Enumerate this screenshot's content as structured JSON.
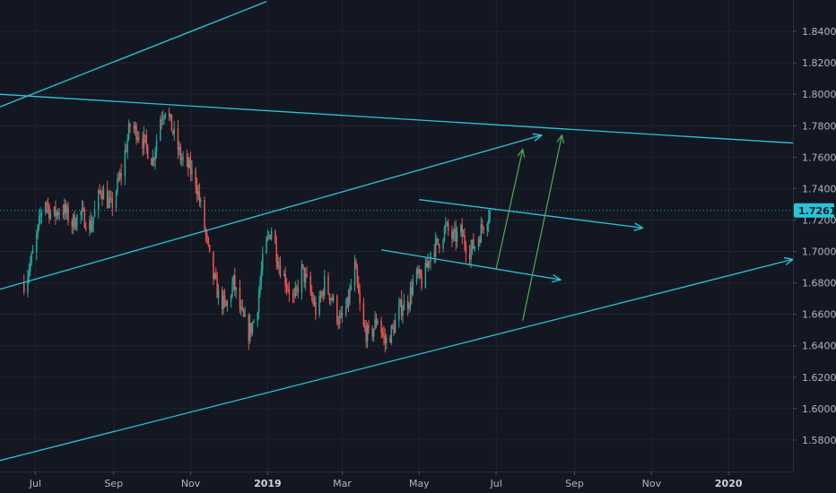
{
  "chart_data": {
    "type": "candlestick",
    "title": "",
    "xlabel": "",
    "ylabel": "",
    "x_ticks": [
      {
        "label": "Jul",
        "date": "2018-07-01"
      },
      {
        "label": "Sep",
        "date": "2018-09-01"
      },
      {
        "label": "Nov",
        "date": "2018-11-01"
      },
      {
        "label": "2019",
        "date": "2019-01-01",
        "bold": true
      },
      {
        "label": "Mar",
        "date": "2019-03-01"
      },
      {
        "label": "May",
        "date": "2019-05-01"
      },
      {
        "label": "Jul",
        "date": "2019-07-01"
      },
      {
        "label": "Sep",
        "date": "2019-09-01"
      },
      {
        "label": "Nov",
        "date": "2019-11-01"
      },
      {
        "label": "2020",
        "date": "2020-01-01",
        "bold": true
      }
    ],
    "y_ticks": [
      "1.84000",
      "1.82000",
      "1.80000",
      "1.78000",
      "1.76000",
      "1.74000",
      "1.72000",
      "1.70000",
      "1.68000",
      "1.66000",
      "1.64000",
      "1.62000",
      "1.60000",
      "1.58000"
    ],
    "ylim": [
      1.56,
      1.86
    ],
    "xlim": [
      "2018-06-03",
      "2020-02-21"
    ],
    "last_price": {
      "value": 1.7261,
      "label": "1.72610",
      "color": "#26c6da"
    },
    "grid": true,
    "colors": {
      "up": "#26a69a",
      "down": "#ef5350",
      "trendline": "#26c6da",
      "projection": "#4caf50"
    },
    "price_path": [
      [
        "2018-06-22",
        1.68
      ],
      [
        "2018-06-30",
        1.7
      ],
      [
        "2018-07-08",
        1.735
      ],
      [
        "2018-07-14",
        1.722
      ],
      [
        "2018-07-22",
        1.728
      ],
      [
        "2018-07-30",
        1.718
      ],
      [
        "2018-08-06",
        1.724
      ],
      [
        "2018-08-14",
        1.716
      ],
      [
        "2018-08-22",
        1.74
      ],
      [
        "2018-08-30",
        1.728
      ],
      [
        "2018-09-07",
        1.75
      ],
      [
        "2018-09-14",
        1.78
      ],
      [
        "2018-09-20",
        1.776
      ],
      [
        "2018-09-26",
        1.768
      ],
      [
        "2018-10-02",
        1.758
      ],
      [
        "2018-10-08",
        1.785
      ],
      [
        "2018-10-12",
        1.792
      ],
      [
        "2018-10-18",
        1.776
      ],
      [
        "2018-10-24",
        1.76
      ],
      [
        "2018-10-30",
        1.754
      ],
      [
        "2018-11-05",
        1.745
      ],
      [
        "2018-11-11",
        1.72
      ],
      [
        "2018-11-17",
        1.69
      ],
      [
        "2018-11-23",
        1.672
      ],
      [
        "2018-11-29",
        1.664
      ],
      [
        "2018-12-05",
        1.68
      ],
      [
        "2018-12-11",
        1.66
      ],
      [
        "2018-12-17",
        1.648
      ],
      [
        "2018-12-23",
        1.66
      ],
      [
        "2018-12-29",
        1.7
      ],
      [
        "2019-01-04",
        1.715
      ],
      [
        "2019-01-10",
        1.692
      ],
      [
        "2019-01-16",
        1.68
      ],
      [
        "2019-01-22",
        1.668
      ],
      [
        "2019-01-28",
        1.688
      ],
      [
        "2019-02-03",
        1.676
      ],
      [
        "2019-02-09",
        1.66
      ],
      [
        "2019-02-15",
        1.68
      ],
      [
        "2019-02-21",
        1.67
      ],
      [
        "2019-02-27",
        1.655
      ],
      [
        "2019-03-05",
        1.665
      ],
      [
        "2019-03-11",
        1.69
      ],
      [
        "2019-03-17",
        1.652
      ],
      [
        "2019-03-23",
        1.645
      ],
      [
        "2019-03-29",
        1.658
      ],
      [
        "2019-04-04",
        1.642
      ],
      [
        "2019-04-10",
        1.65
      ],
      [
        "2019-04-16",
        1.664
      ],
      [
        "2019-04-22",
        1.668
      ],
      [
        "2019-04-28",
        1.685
      ],
      [
        "2019-05-04",
        1.68
      ],
      [
        "2019-05-10",
        1.7
      ],
      [
        "2019-05-16",
        1.705
      ],
      [
        "2019-05-22",
        1.715
      ],
      [
        "2019-05-28",
        1.708
      ],
      [
        "2019-06-03",
        1.712
      ],
      [
        "2019-06-09",
        1.7
      ],
      [
        "2019-06-15",
        1.705
      ],
      [
        "2019-06-21",
        1.718
      ],
      [
        "2019-06-26",
        1.7261
      ]
    ],
    "trend_lines": [
      {
        "name": "outer-upper-channel-line",
        "from": [
          "2018-06-03",
          1.792
        ],
        "to": [
          "2018-12-31",
          1.859
        ],
        "arrow": false
      },
      {
        "name": "descending-resistance-line",
        "from": [
          "2018-06-03",
          1.8
        ],
        "to": [
          "2020-02-21",
          1.769
        ],
        "arrow": false
      },
      {
        "name": "rising-channel-upper-line",
        "from": [
          "2018-06-03",
          1.676
        ],
        "to": [
          "2019-08-06",
          1.774
        ],
        "arrow": true
      },
      {
        "name": "rising-channel-lower-line",
        "from": [
          "2018-06-03",
          1.567
        ],
        "to": [
          "2020-02-21",
          1.695
        ],
        "arrow": true
      },
      {
        "name": "short-descending-line-upper",
        "from": [
          "2019-05-01",
          1.733
        ],
        "to": [
          "2019-10-25",
          1.715
        ],
        "arrow": true
      },
      {
        "name": "short-descending-line-lower",
        "from": [
          "2019-04-01",
          1.701
        ],
        "to": [
          "2019-08-21",
          1.682
        ],
        "arrow": true
      }
    ],
    "projection_arrows": [
      {
        "name": "green-projection-arrow-1",
        "from": [
          "2019-07-01",
          1.689
        ],
        "to": [
          "2019-07-22",
          1.765
        ]
      },
      {
        "name": "green-projection-arrow-2",
        "from": [
          "2019-07-22",
          1.656
        ],
        "to": [
          "2019-08-22",
          1.774
        ]
      }
    ]
  }
}
